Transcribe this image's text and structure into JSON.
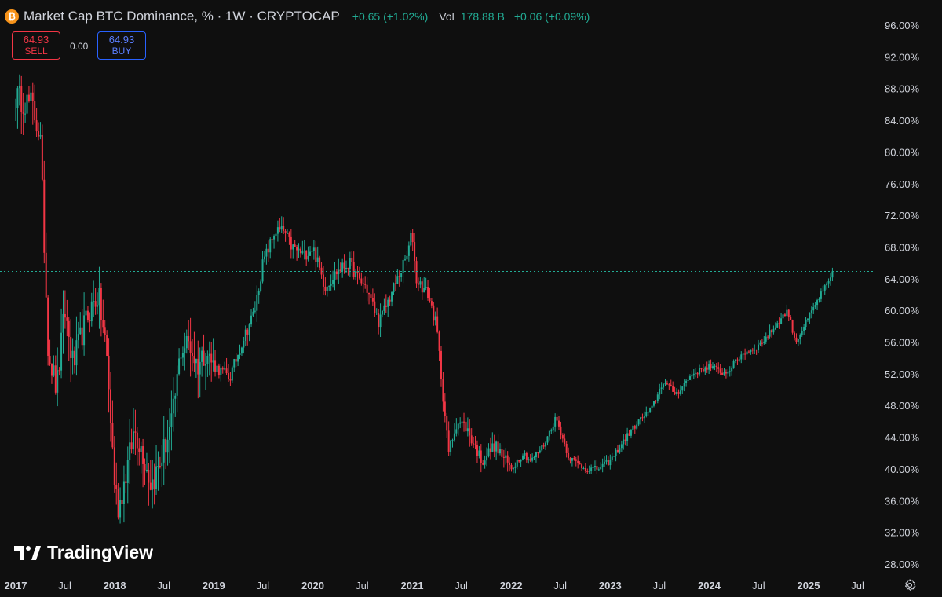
{
  "header": {
    "symbol_icon": "bitcoin-icon",
    "title": "Market Cap BTC Dominance, % · 1W · CRYPTOCAP",
    "change": "+0.65 (+1.02%)",
    "vol_label": "Vol",
    "vol_value": "178.88 B",
    "vol_change": "+0.06 (+0.09%)"
  },
  "trade": {
    "sell_price": "64.93",
    "sell_label": "SELL",
    "spread": "0.00",
    "buy_price": "64.93",
    "buy_label": "BUY"
  },
  "logo_text": "TradingView",
  "colors": {
    "background": "#0f0f0f",
    "up": "#22ab94",
    "down": "#f23645",
    "grid": "#2a2a2a",
    "text": "#d1d4dc"
  },
  "chart_data": {
    "type": "candlestick",
    "interval": "1W",
    "ylim": [
      26.5,
      97.5
    ],
    "yscale": "linear",
    "y_ticks": [
      "96.00%",
      "92.00%",
      "88.00%",
      "84.00%",
      "80.00%",
      "76.00%",
      "72.00%",
      "68.00%",
      "64.00%",
      "60.00%",
      "56.00%",
      "52.00%",
      "48.00%",
      "44.00%",
      "40.00%",
      "36.00%",
      "32.00%",
      "28.00%"
    ],
    "x_ticks": [
      "2017",
      "Jul",
      "2018",
      "Jul",
      "2019",
      "Jul",
      "2020",
      "Jul",
      "2021",
      "Jul",
      "2022",
      "Jul",
      "2023",
      "Jul",
      "2024",
      "Jul",
      "2025",
      "Jul"
    ],
    "last_value": 64.93,
    "grid": false,
    "close_path": [
      [
        "2017-01-01",
        87.0
      ],
      [
        "2017-03-01",
        86.0
      ],
      [
        "2017-04-01",
        82.0
      ],
      [
        "2017-05-01",
        55.0
      ],
      [
        "2017-06-01",
        50.0
      ],
      [
        "2017-07-01",
        60.0
      ],
      [
        "2017-08-01",
        53.0
      ],
      [
        "2017-09-01",
        57.0
      ],
      [
        "2017-10-01",
        60.0
      ],
      [
        "2017-11-01",
        62.0
      ],
      [
        "2017-12-01",
        55.0
      ],
      [
        "2018-01-01",
        38.0
      ],
      [
        "2018-01-15",
        35.0
      ],
      [
        "2018-02-15",
        40.0
      ],
      [
        "2018-03-15",
        45.0
      ],
      [
        "2018-04-15",
        42.0
      ],
      [
        "2018-05-15",
        38.0
      ],
      [
        "2018-06-15",
        40.5
      ],
      [
        "2018-08-01",
        46.0
      ],
      [
        "2018-09-01",
        55.0
      ],
      [
        "2018-10-01",
        56.0
      ],
      [
        "2018-11-01",
        53.0
      ],
      [
        "2018-12-01",
        55.0
      ],
      [
        "2019-01-01",
        53.0
      ],
      [
        "2019-03-01",
        51.5
      ],
      [
        "2019-04-15",
        56.0
      ],
      [
        "2019-06-01",
        60.0
      ],
      [
        "2019-07-01",
        66.0
      ],
      [
        "2019-08-15",
        70.0
      ],
      [
        "2019-09-15",
        70.0
      ],
      [
        "2019-10-15",
        68.0
      ],
      [
        "2019-12-01",
        67.0
      ],
      [
        "2020-01-01",
        68.0
      ],
      [
        "2020-02-15",
        63.0
      ],
      [
        "2020-04-01",
        65.0
      ],
      [
        "2020-05-15",
        66.0
      ],
      [
        "2020-06-15",
        64.0
      ],
      [
        "2020-07-15",
        63.0
      ],
      [
        "2020-09-01",
        58.5
      ],
      [
        "2020-10-15",
        62.0
      ],
      [
        "2020-12-15",
        67.0
      ],
      [
        "2021-01-01",
        70.0
      ],
      [
        "2021-01-15",
        64.0
      ],
      [
        "2021-03-01",
        62.0
      ],
      [
        "2021-04-01",
        58.0
      ],
      [
        "2021-05-15",
        42.0
      ],
      [
        "2021-06-15",
        46.0
      ],
      [
        "2021-07-15",
        45.5
      ],
      [
        "2021-09-15",
        41.0
      ],
      [
        "2021-11-01",
        43.0
      ],
      [
        "2022-01-01",
        40.0
      ],
      [
        "2022-02-15",
        42.0
      ],
      [
        "2022-03-15",
        41.0
      ],
      [
        "2022-05-01",
        43.0
      ],
      [
        "2022-06-15",
        46.5
      ],
      [
        "2022-08-01",
        41.5
      ],
      [
        "2022-10-01",
        40.0
      ],
      [
        "2022-11-15",
        40.0
      ],
      [
        "2023-01-01",
        41.0
      ],
      [
        "2023-03-01",
        44.0
      ],
      [
        "2023-04-15",
        46.0
      ],
      [
        "2023-06-01",
        47.5
      ],
      [
        "2023-07-15",
        51.0
      ],
      [
        "2023-09-01",
        49.5
      ],
      [
        "2023-11-01",
        52.0
      ],
      [
        "2024-01-01",
        53.0
      ],
      [
        "2024-03-01",
        52.0
      ],
      [
        "2024-05-01",
        54.5
      ],
      [
        "2024-07-01",
        55.5
      ],
      [
        "2024-09-01",
        58.0
      ],
      [
        "2024-10-15",
        60.0
      ],
      [
        "2024-11-15",
        56.0
      ],
      [
        "2024-12-15",
        58.0
      ],
      [
        "2025-01-15",
        60.0
      ],
      [
        "2025-02-15",
        62.0
      ],
      [
        "2025-03-15",
        63.5
      ],
      [
        "2025-04-05",
        64.93
      ]
    ]
  }
}
